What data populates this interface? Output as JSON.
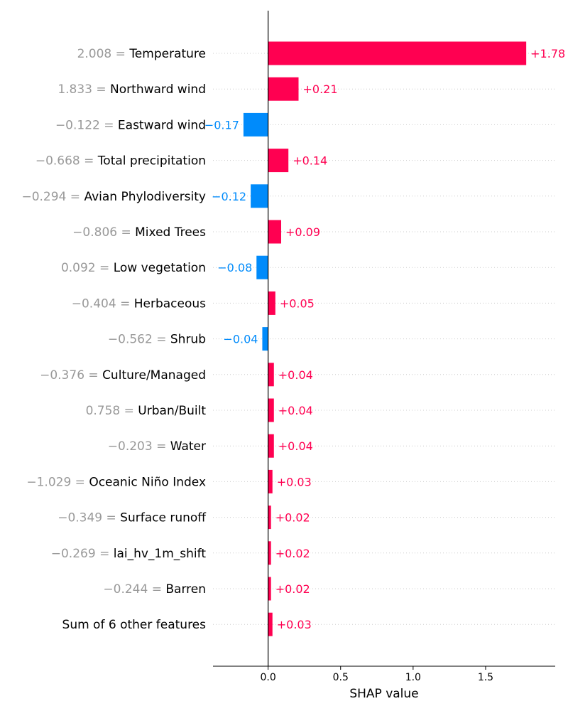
{
  "chart_data": {
    "type": "bar",
    "orientation": "horizontal",
    "features": [
      {
        "value": "2.008",
        "name": "Temperature",
        "shap": 1.78,
        "label": "+1.78"
      },
      {
        "value": "1.833",
        "name": "Northward wind",
        "shap": 0.21,
        "label": "+0.21"
      },
      {
        "value": "−0.122",
        "name": "Eastward wind",
        "shap": -0.17,
        "label": "−0.17"
      },
      {
        "value": "−0.668",
        "name": "Total precipitation",
        "shap": 0.14,
        "label": "+0.14"
      },
      {
        "value": "−0.294",
        "name": "Avian Phylodiversity",
        "shap": -0.12,
        "label": "−0.12"
      },
      {
        "value": "−0.806",
        "name": "Mixed Trees",
        "shap": 0.09,
        "label": "+0.09"
      },
      {
        "value": "0.092",
        "name": "Low vegetation",
        "shap": -0.08,
        "label": "−0.08"
      },
      {
        "value": "−0.404",
        "name": "Herbaceous",
        "shap": 0.05,
        "label": "+0.05"
      },
      {
        "value": "−0.562",
        "name": "Shrub",
        "shap": -0.04,
        "label": "−0.04"
      },
      {
        "value": "−0.376",
        "name": "Culture/Managed",
        "shap": 0.04,
        "label": "+0.04"
      },
      {
        "value": "0.758",
        "name": "Urban/Built",
        "shap": 0.04,
        "label": "+0.04"
      },
      {
        "value": "−0.203",
        "name": "Water",
        "shap": 0.04,
        "label": "+0.04"
      },
      {
        "value": "−1.029",
        "name": "Oceanic Niño Index",
        "shap": 0.03,
        "label": "+0.03"
      },
      {
        "value": "−0.349",
        "name": "Surface runoff",
        "shap": 0.02,
        "label": "+0.02"
      },
      {
        "value": "−0.269",
        "name": "lai_hv_1m_shift",
        "shap": 0.02,
        "label": "+0.02"
      },
      {
        "value": "−0.244",
        "name": "Barren",
        "shap": 0.02,
        "label": "+0.02"
      },
      {
        "value": "",
        "name": "Sum of 6 other features",
        "shap": 0.03,
        "label": "+0.03"
      }
    ],
    "xlabel": "SHAP value",
    "xlim": [
      -0.38,
      1.98
    ],
    "xticks": [
      {
        "v": 0.0,
        "label": "0.0"
      },
      {
        "v": 0.5,
        "label": "0.5"
      },
      {
        "v": 1.0,
        "label": "1.0"
      },
      {
        "v": 1.5,
        "label": "1.5"
      }
    ],
    "colors": {
      "positive": "#ff0051",
      "negative": "#008bfb",
      "feature_value": "#999999",
      "gridline": "#cccccc",
      "axis": "#000000"
    },
    "grid": "dotted horizontal row lines",
    "legend": "none"
  }
}
